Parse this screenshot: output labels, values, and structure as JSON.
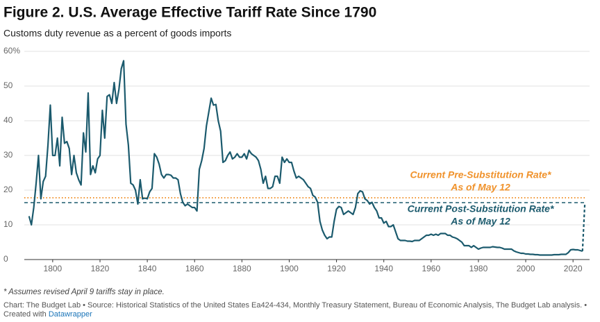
{
  "chart_data": {
    "type": "line",
    "title": "Figure 2. U.S. Average Effective Tariff Rate Since 1790",
    "subtitle": "Customs duty revenue as a percent of goods imports",
    "x": [
      1790,
      1791,
      1792,
      1793,
      1794,
      1795,
      1796,
      1797,
      1798,
      1799,
      1800,
      1801,
      1802,
      1803,
      1804,
      1805,
      1806,
      1807,
      1808,
      1809,
      1810,
      1811,
      1812,
      1813,
      1814,
      1815,
      1816,
      1817,
      1818,
      1819,
      1820,
      1821,
      1822,
      1823,
      1824,
      1825,
      1826,
      1827,
      1828,
      1829,
      1830,
      1831,
      1832,
      1833,
      1834,
      1835,
      1836,
      1837,
      1838,
      1839,
      1840,
      1841,
      1842,
      1843,
      1844,
      1845,
      1846,
      1847,
      1848,
      1849,
      1850,
      1851,
      1852,
      1853,
      1854,
      1855,
      1856,
      1857,
      1858,
      1859,
      1860,
      1861,
      1862,
      1863,
      1864,
      1865,
      1866,
      1867,
      1868,
      1869,
      1870,
      1871,
      1872,
      1873,
      1874,
      1875,
      1876,
      1877,
      1878,
      1879,
      1880,
      1881,
      1882,
      1883,
      1884,
      1885,
      1886,
      1887,
      1888,
      1889,
      1890,
      1891,
      1892,
      1893,
      1894,
      1895,
      1896,
      1897,
      1898,
      1899,
      1900,
      1901,
      1902,
      1903,
      1904,
      1905,
      1906,
      1907,
      1908,
      1909,
      1910,
      1911,
      1912,
      1913,
      1914,
      1915,
      1916,
      1917,
      1918,
      1919,
      1920,
      1921,
      1922,
      1923,
      1924,
      1925,
      1926,
      1927,
      1928,
      1929,
      1930,
      1931,
      1932,
      1933,
      1934,
      1935,
      1936,
      1937,
      1938,
      1939,
      1940,
      1941,
      1942,
      1943,
      1944,
      1945,
      1946,
      1947,
      1948,
      1949,
      1950,
      1951,
      1952,
      1953,
      1954,
      1955,
      1956,
      1957,
      1958,
      1959,
      1960,
      1961,
      1962,
      1963,
      1964,
      1965,
      1966,
      1967,
      1968,
      1969,
      1970,
      1971,
      1972,
      1973,
      1974,
      1975,
      1976,
      1977,
      1978,
      1979,
      1980,
      1981,
      1982,
      1983,
      1984,
      1985,
      1986,
      1987,
      1988,
      1989,
      1990,
      1991,
      1992,
      1993,
      1994,
      1995,
      1996,
      1997,
      1998,
      1999,
      2000,
      2001,
      2002,
      2003,
      2004,
      2005,
      2006,
      2007,
      2008,
      2009,
      2010,
      2011,
      2012,
      2013,
      2014,
      2015,
      2016,
      2017,
      2018,
      2019,
      2020,
      2021,
      2022,
      2023,
      2024
    ],
    "series": [
      {
        "color": "#1b5a6d",
        "style": "solid",
        "values": [
          12.5,
          10,
          15,
          22,
          30,
          17.5,
          22.5,
          24,
          33,
          44.5,
          30,
          30,
          35,
          27,
          41,
          33.5,
          34,
          32,
          24.5,
          30,
          25,
          23,
          21.5,
          36.5,
          31,
          48,
          24.5,
          27,
          25,
          29,
          30,
          43,
          35,
          47,
          47.5,
          45,
          51,
          45,
          49,
          55,
          57.3,
          39,
          33,
          22,
          21.5,
          20,
          16,
          23,
          17.5,
          17.7,
          17.5,
          19.5,
          20.5,
          30.5,
          29.5,
          27.5,
          24.5,
          23.5,
          24.5,
          24.5,
          24.3,
          23.5,
          23.5,
          23,
          19,
          16.5,
          15.5,
          16,
          15.5,
          15,
          15,
          14,
          26,
          28.5,
          32,
          38.5,
          42.5,
          46.5,
          44.5,
          44.7,
          40,
          37,
          28,
          28.5,
          30,
          31,
          29,
          29.5,
          30.5,
          29.5,
          29.5,
          30.5,
          29,
          31.5,
          30.5,
          30,
          29.5,
          28.5,
          26,
          22,
          24,
          20.5,
          20.5,
          21,
          24,
          24,
          22,
          29.5,
          28,
          29,
          28,
          28,
          25.5,
          23.5,
          24,
          23.5,
          23,
          22,
          21,
          20.5,
          18.5,
          18,
          16.5,
          11,
          8.5,
          7,
          6,
          6.5,
          6.5,
          11,
          14.5,
          15.3,
          15,
          13,
          13.5,
          14,
          13.5,
          13,
          15,
          19,
          19.8,
          19.5,
          17.5,
          17,
          16,
          16.5,
          15,
          14,
          12,
          12,
          10.5,
          11,
          9.5,
          9.5,
          10,
          8,
          6,
          5.5,
          5.5,
          5.5,
          5.3,
          5.3,
          5.2,
          5.5,
          5.5,
          5.5,
          6,
          6.5,
          7,
          7,
          7.3,
          7,
          7.3,
          7,
          7.5,
          7.5,
          7.5,
          7,
          7,
          6.5,
          6.3,
          6,
          5.5,
          5,
          4,
          4,
          4,
          3.5,
          4,
          3.5,
          3,
          3.3,
          3.5,
          3.5,
          3.5,
          3.5,
          3.7,
          3.6,
          3.5,
          3.5,
          3.3,
          3,
          3,
          3,
          3,
          2.5,
          2.2,
          2,
          1.8,
          1.8,
          1.6,
          1.6,
          1.5,
          1.5,
          1.4,
          1.4,
          1.3,
          1.3,
          1.3,
          1.3,
          1.3,
          1.3,
          1.4,
          1.4,
          1.4,
          1.5,
          1.5,
          1.5,
          2.0,
          2.8,
          2.9,
          2.8,
          2.8,
          2.6,
          2.4
        ]
      },
      {
        "color": "#1b5a6d",
        "style": "dashed",
        "x": [
          2024,
          2025
        ],
        "values": [
          2.4,
          16.4
        ]
      }
    ],
    "reference_lines": [
      {
        "label": "Current Pre-Substitution Rate*",
        "sublabel": "As of May 12",
        "value": 17.8,
        "color": "#f0922b",
        "style": "dotted",
        "position": "above"
      },
      {
        "label": "Current Post-Substitution Rate*",
        "sublabel": "As of May 12",
        "value": 16.4,
        "color": "#1b5a6d",
        "style": "dashed",
        "position": "below"
      }
    ],
    "xlim": [
      1788,
      2027
    ],
    "xticks": [
      1800,
      1820,
      1840,
      1860,
      1880,
      1900,
      1920,
      1940,
      1960,
      1980,
      2000,
      2020
    ],
    "ylim": [
      0,
      60
    ],
    "yticks": [
      0,
      10,
      20,
      30,
      40,
      50,
      {
        "value": 60,
        "label": "60%"
      }
    ],
    "grid": true,
    "footnote": "* Assumes revised April 9 tariffs stay in place.",
    "source": "Chart: The Budget Lab • Source: Historical Statistics of the United States Ea424-434, Monthly Treasury Statement, Bureau of Economic Analysis, The Budget Lab analysis. •",
    "credit": "Created with",
    "credit_link": "Datawrapper"
  }
}
